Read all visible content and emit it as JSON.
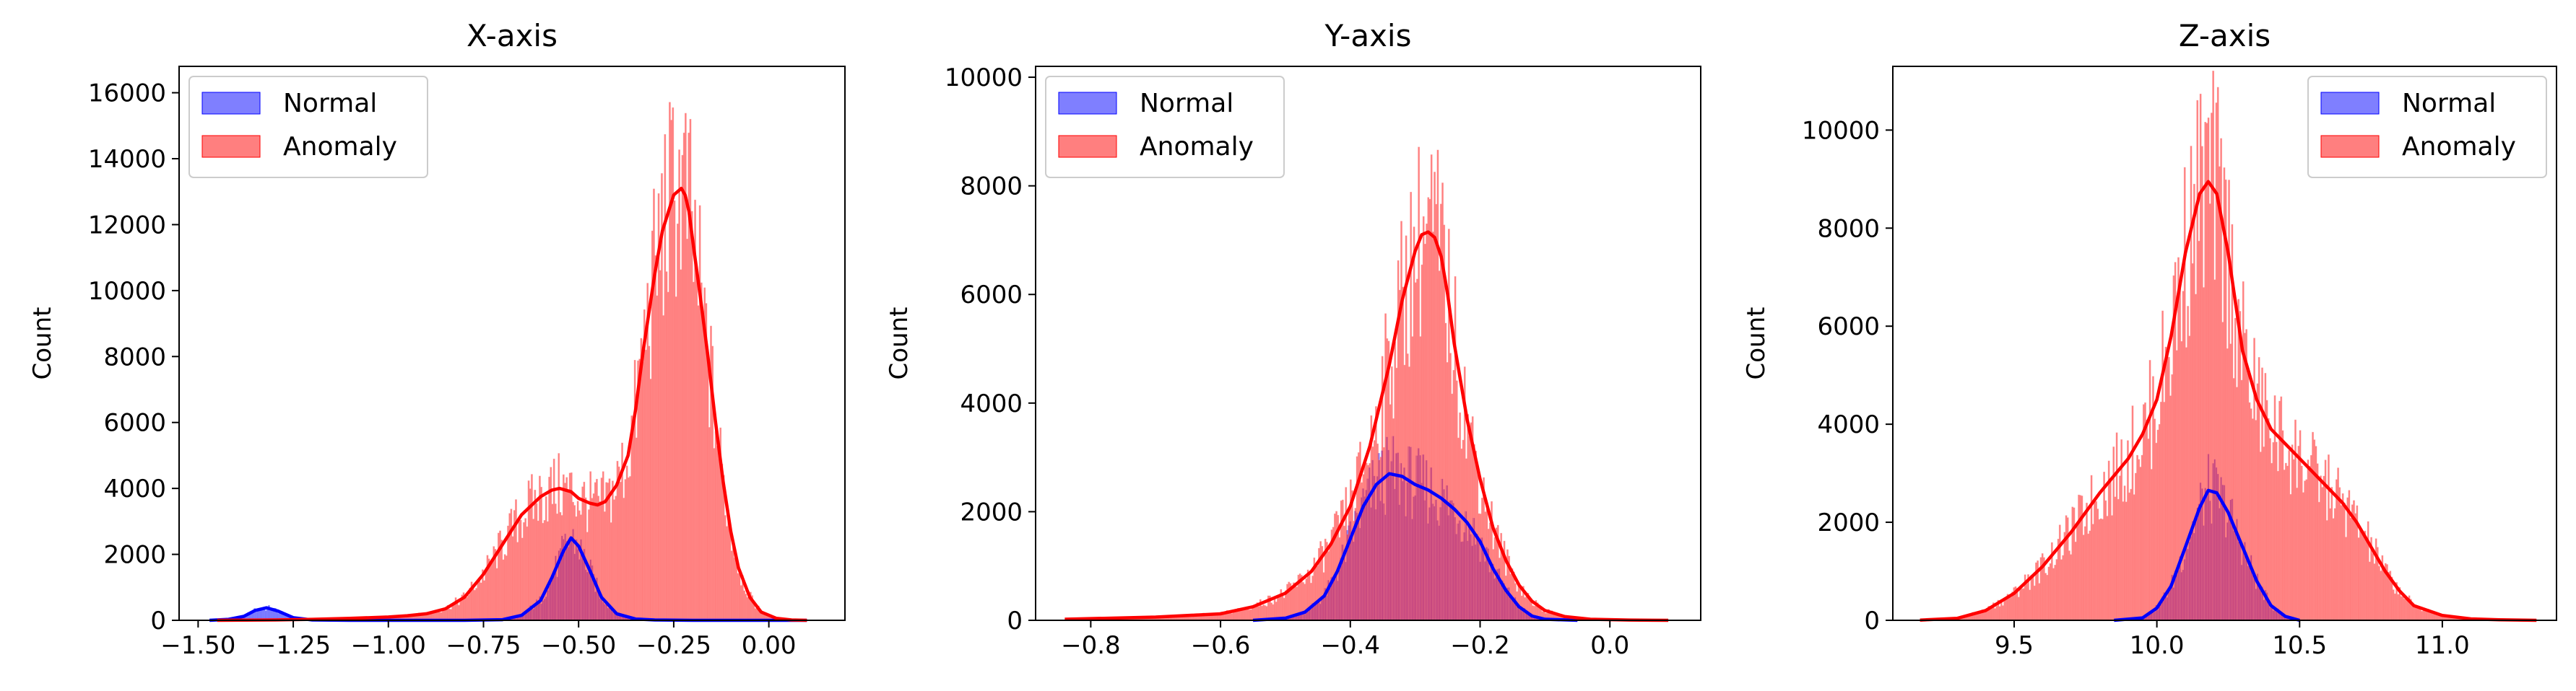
{
  "chart_data": [
    {
      "type": "histogram",
      "title": "X-axis",
      "xlabel": "",
      "ylabel": "Count",
      "xlim": [
        -1.55,
        0.2
      ],
      "ylim": [
        0,
        16800
      ],
      "xticks": [
        -1.5,
        -1.25,
        -1.0,
        -0.75,
        -0.5,
        -0.25,
        0.0
      ],
      "xtick_labels": [
        "−1.50",
        "−1.25",
        "−1.00",
        "−0.75",
        "−0.50",
        "−0.25",
        "0.00"
      ],
      "yticks": [
        0,
        2000,
        4000,
        6000,
        8000,
        10000,
        12000,
        14000,
        16000
      ],
      "ytick_labels": [
        "0",
        "2000",
        "4000",
        "6000",
        "8000",
        "10000",
        "12000",
        "14000",
        "16000"
      ],
      "legend_position": "top-left",
      "series": [
        {
          "name": "Normal",
          "color": "#0000ff",
          "kde_x": [
            -1.47,
            -1.42,
            -1.38,
            -1.35,
            -1.32,
            -1.29,
            -1.25,
            -1.2,
            -1.1,
            -1.0,
            -0.9,
            -0.8,
            -0.7,
            -0.65,
            -0.6,
            -0.57,
            -0.54,
            -0.52,
            -0.5,
            -0.47,
            -0.44,
            -0.4,
            -0.35,
            -0.3,
            -0.2,
            -0.1,
            0.0,
            0.1
          ],
          "kde_y": [
            0,
            30,
            120,
            300,
            380,
            280,
            80,
            10,
            0,
            0,
            0,
            0,
            20,
            150,
            600,
            1300,
            2100,
            2500,
            2250,
            1500,
            700,
            200,
            40,
            10,
            0,
            0,
            0,
            0
          ]
        },
        {
          "name": "Anomaly",
          "color": "#ff0000",
          "kde_x": [
            -1.45,
            -1.3,
            -1.2,
            -1.1,
            -1.0,
            -0.95,
            -0.9,
            -0.85,
            -0.8,
            -0.75,
            -0.7,
            -0.65,
            -0.6,
            -0.57,
            -0.55,
            -0.52,
            -0.5,
            -0.47,
            -0.45,
            -0.43,
            -0.4,
            -0.37,
            -0.35,
            -0.33,
            -0.3,
            -0.28,
            -0.25,
            -0.23,
            -0.22,
            -0.21,
            -0.2,
            -0.18,
            -0.16,
            -0.14,
            -0.12,
            -0.1,
            -0.08,
            -0.05,
            -0.02,
            0.02,
            0.06,
            0.1
          ],
          "kde_y": [
            0,
            10,
            30,
            60,
            100,
            140,
            200,
            350,
            700,
            1400,
            2300,
            3200,
            3750,
            3950,
            4000,
            3900,
            3700,
            3550,
            3500,
            3600,
            4100,
            5000,
            6400,
            8200,
            10500,
            11800,
            12900,
            13100,
            12900,
            12400,
            11500,
            9800,
            8000,
            6000,
            4200,
            2700,
            1600,
            700,
            250,
            60,
            10,
            0
          ]
        }
      ]
    },
    {
      "type": "histogram",
      "title": "Y-axis",
      "xlabel": "",
      "ylabel": "Count",
      "xlim": [
        -0.885,
        0.14
      ],
      "ylim": [
        0,
        10200
      ],
      "xticks": [
        -0.8,
        -0.6,
        -0.4,
        -0.2,
        0.0
      ],
      "xtick_labels": [
        "−0.8",
        "−0.6",
        "−0.4",
        "−0.2",
        "0.0"
      ],
      "yticks": [
        0,
        2000,
        4000,
        6000,
        8000,
        10000
      ],
      "ytick_labels": [
        "0",
        "2000",
        "4000",
        "6000",
        "8000",
        "10000"
      ],
      "legend_position": "top-left",
      "series": [
        {
          "name": "Normal",
          "color": "#0000ff",
          "kde_x": [
            -0.55,
            -0.5,
            -0.47,
            -0.44,
            -0.42,
            -0.4,
            -0.38,
            -0.36,
            -0.34,
            -0.32,
            -0.3,
            -0.28,
            -0.26,
            -0.24,
            -0.22,
            -0.2,
            -0.18,
            -0.16,
            -0.14,
            -0.12,
            -0.1,
            -0.05
          ],
          "kde_y": [
            0,
            40,
            150,
            450,
            900,
            1500,
            2100,
            2500,
            2700,
            2650,
            2500,
            2400,
            2250,
            2050,
            1800,
            1450,
            950,
            550,
            250,
            80,
            20,
            0
          ]
        },
        {
          "name": "Anomaly",
          "color": "#ff0000",
          "kde_x": [
            -0.84,
            -0.7,
            -0.6,
            -0.55,
            -0.5,
            -0.46,
            -0.43,
            -0.4,
            -0.37,
            -0.34,
            -0.32,
            -0.3,
            -0.29,
            -0.28,
            -0.27,
            -0.26,
            -0.25,
            -0.24,
            -0.22,
            -0.2,
            -0.18,
            -0.16,
            -0.14,
            -0.12,
            -0.1,
            -0.07,
            -0.03,
            0.03,
            0.09
          ],
          "kde_y": [
            20,
            60,
            120,
            250,
            500,
            900,
            1400,
            2100,
            3200,
            4700,
            5900,
            6800,
            7100,
            7150,
            7050,
            6700,
            6000,
            5100,
            3700,
            2600,
            1700,
            1100,
            650,
            350,
            180,
            70,
            20,
            5,
            0
          ]
        }
      ]
    },
    {
      "type": "histogram",
      "title": "Z-axis",
      "xlabel": "",
      "ylabel": "Count",
      "xlim": [
        9.075,
        11.4
      ],
      "ylim": [
        0,
        11300
      ],
      "xticks": [
        9.5,
        10.0,
        10.5,
        11.0
      ],
      "xtick_labels": [
        "9.5",
        "10.0",
        "10.5",
        "11.0"
      ],
      "yticks": [
        0,
        2000,
        4000,
        6000,
        8000,
        10000
      ],
      "ytick_labels": [
        "0",
        "2000",
        "4000",
        "6000",
        "8000",
        "10000"
      ],
      "legend_position": "top-right",
      "series": [
        {
          "name": "Normal",
          "color": "#0000ff",
          "kde_x": [
            9.85,
            9.95,
            10.0,
            10.05,
            10.1,
            10.15,
            10.18,
            10.21,
            10.25,
            10.3,
            10.35,
            10.4,
            10.45,
            10.5
          ],
          "kde_y": [
            0,
            50,
            250,
            700,
            1500,
            2300,
            2650,
            2600,
            2200,
            1500,
            800,
            300,
            80,
            0
          ]
        },
        {
          "name": "Anomaly",
          "color": "#ff0000",
          "kde_x": [
            9.17,
            9.3,
            9.4,
            9.5,
            9.6,
            9.7,
            9.8,
            9.9,
            9.95,
            10.0,
            10.05,
            10.1,
            10.15,
            10.18,
            10.21,
            10.25,
            10.3,
            10.35,
            10.4,
            10.45,
            10.5,
            10.55,
            10.6,
            10.65,
            10.7,
            10.75,
            10.8,
            10.85,
            10.9,
            11.0,
            11.1,
            11.2,
            11.33
          ],
          "kde_y": [
            5,
            40,
            200,
            550,
            1100,
            1800,
            2600,
            3300,
            3800,
            4500,
            5800,
            7500,
            8700,
            8950,
            8700,
            7500,
            5500,
            4500,
            3900,
            3600,
            3300,
            3000,
            2700,
            2400,
            2000,
            1500,
            1000,
            600,
            300,
            100,
            30,
            10,
            0
          ]
        }
      ]
    }
  ]
}
